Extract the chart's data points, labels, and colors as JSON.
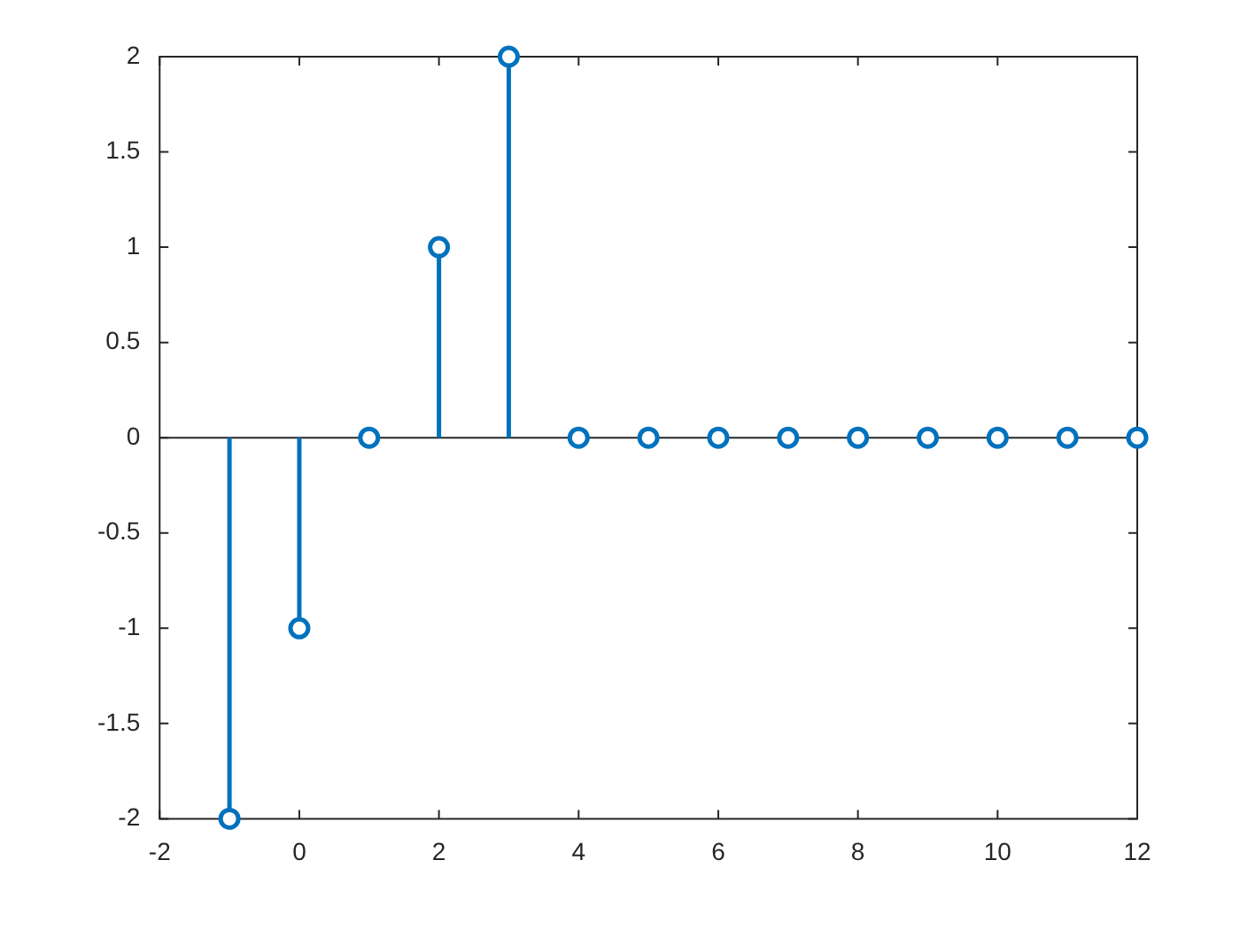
{
  "chart_data": {
    "type": "lollipop",
    "x": [
      -1,
      0,
      1,
      2,
      3,
      4,
      5,
      6,
      7,
      8,
      9,
      10,
      11,
      12
    ],
    "values": [
      -2,
      -1,
      0,
      1,
      2,
      0,
      0,
      0,
      0,
      0,
      0,
      0,
      0,
      0
    ],
    "color": "#0072bd",
    "marker": "circle",
    "xlim": [
      -2,
      12
    ],
    "ylim": [
      -2,
      2
    ],
    "xticks": [
      -2,
      0,
      2,
      4,
      6,
      8,
      10,
      12
    ],
    "yticks": [
      -2,
      -1.5,
      -1,
      -0.5,
      0,
      0.5,
      1,
      1.5,
      2
    ]
  }
}
